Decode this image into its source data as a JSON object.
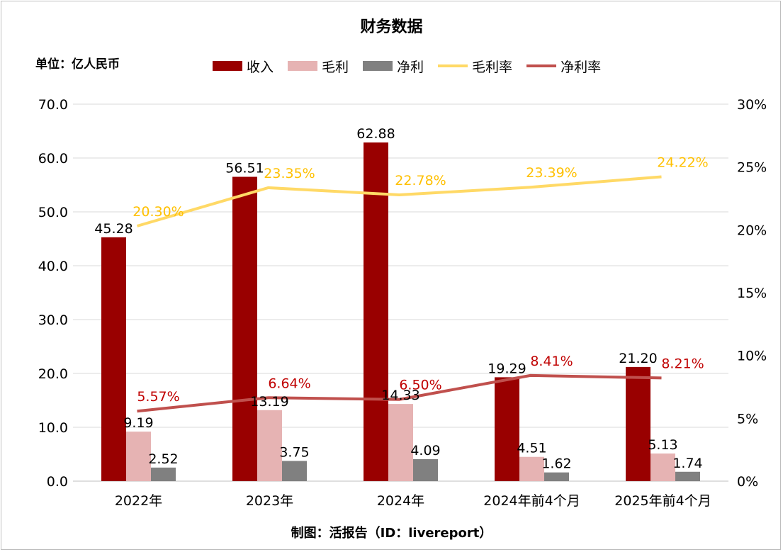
{
  "chart_data": {
    "type": "bar",
    "title": "财务数据",
    "unit_label": "单位：亿人民币",
    "footer": "制图：活报告（ID：livereport）",
    "categories": [
      "2022年",
      "2023年",
      "2024年",
      "2024年前4个月",
      "2025年前4个月"
    ],
    "series": [
      {
        "name": "收入",
        "kind": "bar",
        "axis": "left",
        "values": [
          45.28,
          56.51,
          62.88,
          19.29,
          21.2
        ],
        "labels": [
          "45.28",
          "56.51",
          "62.88",
          "19.29",
          "21.20"
        ],
        "color": "#990000"
      },
      {
        "name": "毛利",
        "kind": "bar",
        "axis": "left",
        "values": [
          9.19,
          13.19,
          14.33,
          4.51,
          5.13
        ],
        "labels": [
          "9.19",
          "13.19",
          "14.33",
          "4.51",
          "5.13"
        ],
        "color": "#e6b3b3"
      },
      {
        "name": "净利",
        "kind": "bar",
        "axis": "left",
        "values": [
          2.52,
          3.75,
          4.09,
          1.62,
          1.74
        ],
        "labels": [
          "2.52",
          "3.75",
          "4.09",
          "1.62",
          "1.74"
        ],
        "color": "#808080"
      },
      {
        "name": "毛利率",
        "kind": "line",
        "axis": "right",
        "values": [
          20.3,
          23.35,
          22.78,
          23.39,
          24.22
        ],
        "labels": [
          "20.30%",
          "23.35%",
          "22.78%",
          "23.39%",
          "24.22%"
        ],
        "color": "#ffd966",
        "label_color": "#ffc000"
      },
      {
        "name": "净利率",
        "kind": "line",
        "axis": "right",
        "values": [
          5.57,
          6.64,
          6.5,
          8.41,
          8.21
        ],
        "labels": [
          "5.57%",
          "6.64%",
          "6.50%",
          "8.41%",
          "8.21%"
        ],
        "color": "#c0504d",
        "label_color": "#c00000"
      }
    ],
    "left_axis": {
      "range": [
        0,
        70
      ],
      "ticks": [
        "0.0",
        "10.0",
        "20.0",
        "30.0",
        "40.0",
        "50.0",
        "60.0",
        "70.0"
      ]
    },
    "right_axis": {
      "range": [
        0,
        30
      ],
      "ticks": [
        "0%",
        "5%",
        "10%",
        "15%",
        "20%",
        "25%",
        "30%"
      ]
    },
    "grid": true,
    "legend_position": "top"
  }
}
